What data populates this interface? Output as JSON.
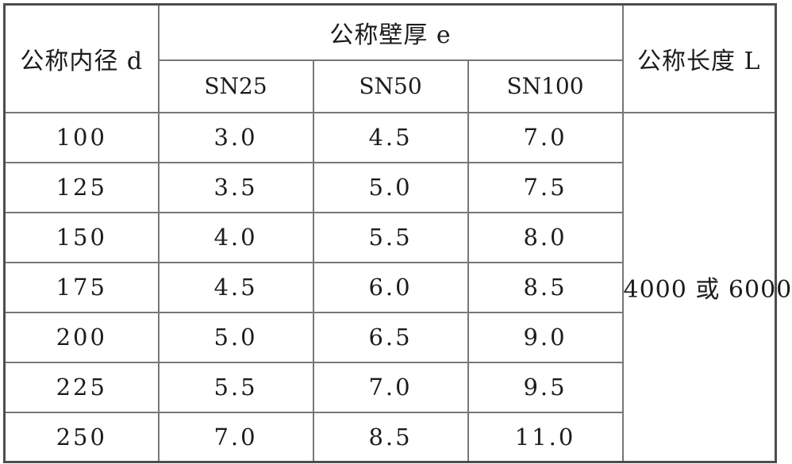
{
  "table": {
    "header": {
      "inner_diameter_label": "公称内径 d",
      "wall_thickness_label": "公称壁厚 e",
      "length_label": "公称长度 L",
      "sn_columns": [
        "SN25",
        "SN50",
        "SN100"
      ]
    },
    "rows": [
      {
        "d": "100",
        "sn25": "3.0",
        "sn50": "4.5",
        "sn100": "7.0"
      },
      {
        "d": "125",
        "sn25": "3.5",
        "sn50": "5.0",
        "sn100": "7.5"
      },
      {
        "d": "150",
        "sn25": "4.0",
        "sn50": "5.5",
        "sn100": "8.0"
      },
      {
        "d": "175",
        "sn25": "4.5",
        "sn50": "6.0",
        "sn100": "8.5"
      },
      {
        "d": "200",
        "sn25": "5.0",
        "sn50": "6.5",
        "sn100": "9.0"
      },
      {
        "d": "225",
        "sn25": "5.5",
        "sn50": "7.0",
        "sn100": "9.5"
      },
      {
        "d": "250",
        "sn25": "7.0",
        "sn50": "8.5",
        "sn100": "11.0"
      }
    ],
    "length_value": "4000 或 6000"
  },
  "colors": {
    "border_inner": "#777777",
    "border_outer": "#4d4d4d",
    "text": "#1c1c1c",
    "background": "#ffffff"
  }
}
